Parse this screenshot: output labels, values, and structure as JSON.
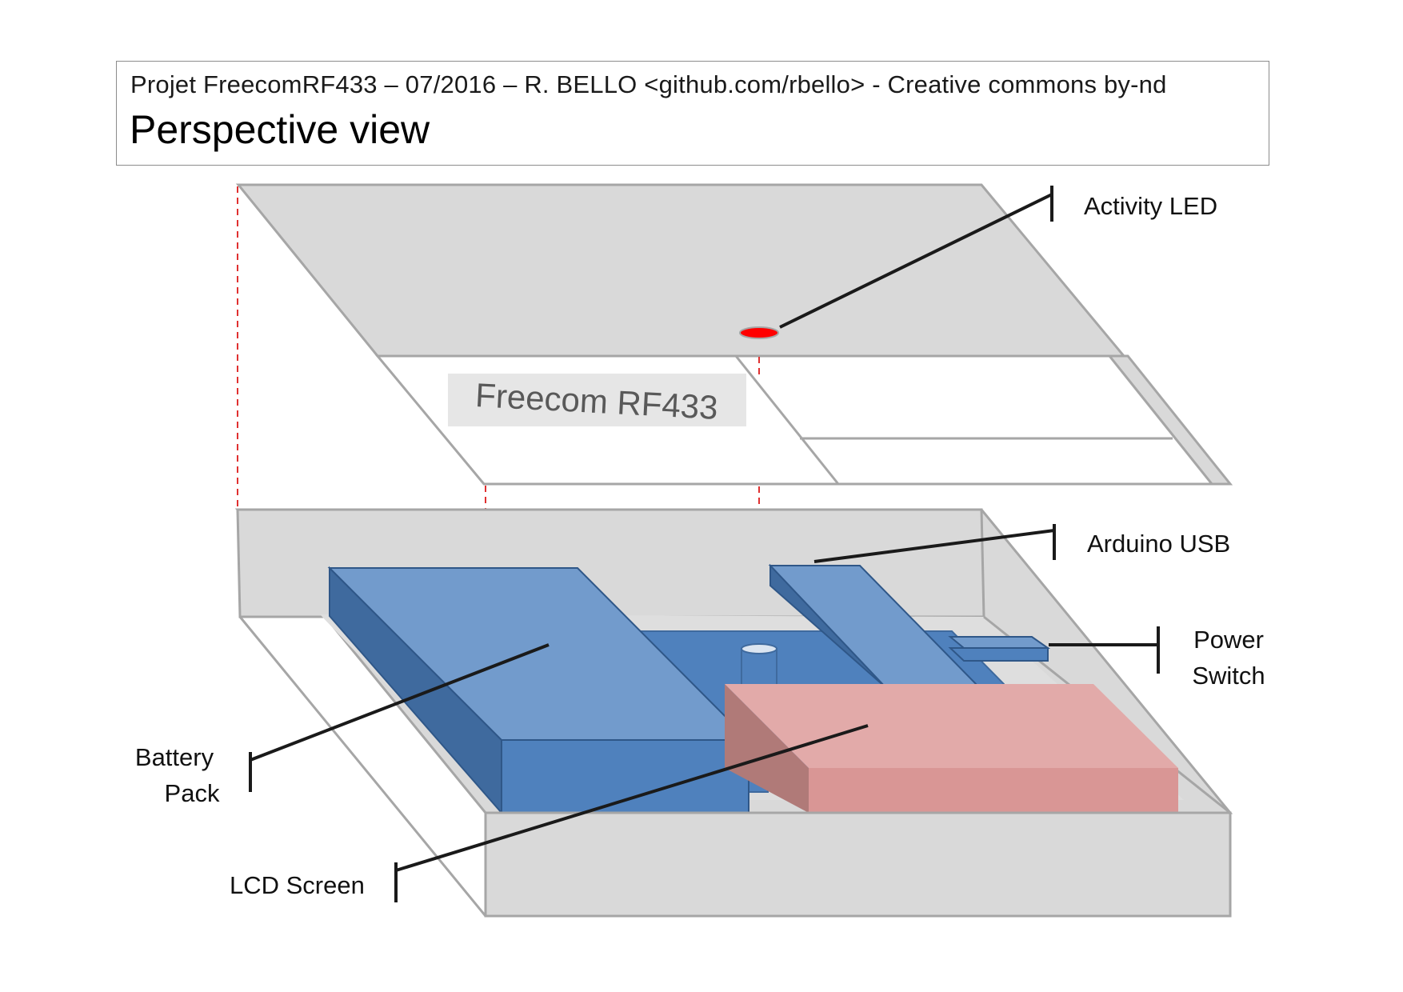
{
  "header": {
    "subtitle": "Projet FreecomRF433 – 07/2016 – R. BELLO <github.com/rbello> - Creative commons by-nd",
    "title": "Perspective view"
  },
  "lid_label": "Freecom RF433",
  "callouts": {
    "activity_led": "Activity LED",
    "arduino_usb": "Arduino USB",
    "power_switch_line1": "Power",
    "power_switch_line2": "Switch",
    "battery_pack_line1": "Battery",
    "battery_pack_line2": "Pack",
    "lcd_screen": "LCD Screen"
  },
  "colors": {
    "case_fill": "#d9d9d9",
    "case_stroke": "#a6a6a6",
    "component_blue": "#729bcc",
    "component_blue_dark": "#3f6a9e",
    "component_blue_side": "#4f81bd",
    "lcd_pink": "#e2aaa9",
    "lcd_pink_dark": "#b07a78",
    "led_red": "#ff0000",
    "guide_red": "#e03030"
  }
}
